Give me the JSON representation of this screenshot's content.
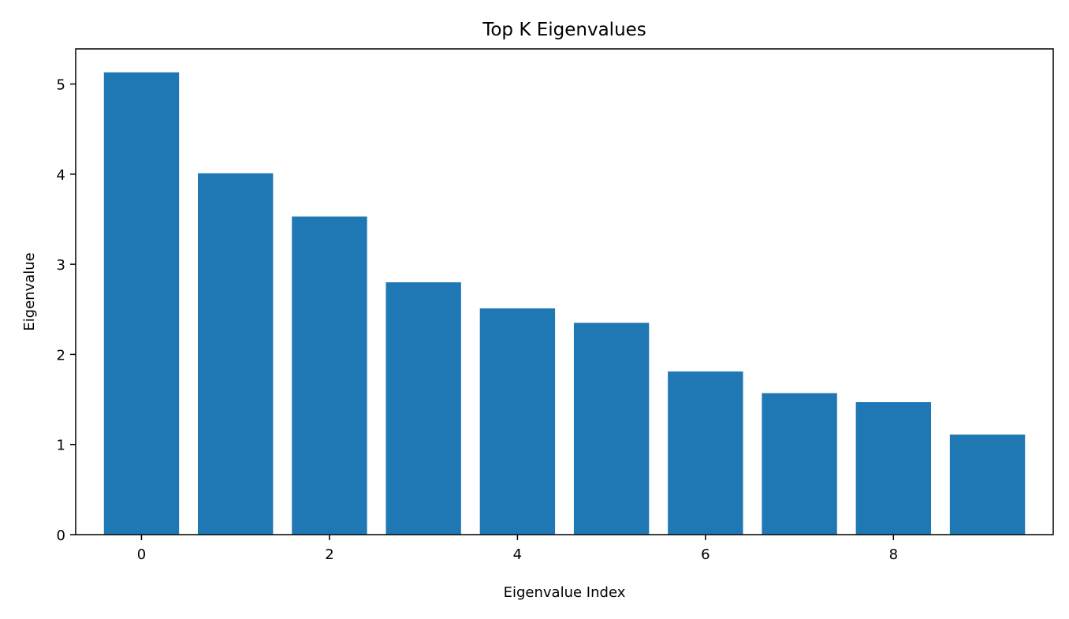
{
  "chart_data": {
    "type": "bar",
    "title": "Top K Eigenvalues",
    "xlabel": "Eigenvalue Index",
    "ylabel": "Eigenvalue",
    "x": [
      0,
      1,
      2,
      3,
      4,
      5,
      6,
      7,
      8,
      9
    ],
    "values": [
      5.13,
      4.01,
      3.53,
      2.8,
      2.51,
      2.35,
      1.81,
      1.57,
      1.47,
      1.11
    ],
    "xlim": [
      -0.7,
      9.7
    ],
    "ylim": [
      0,
      5.39
    ],
    "xticks": [
      0,
      2,
      4,
      6,
      8
    ],
    "yticks": [
      0,
      1,
      2,
      3,
      4,
      5
    ],
    "bar_color": "#1f77b4",
    "grid": false,
    "legend": "none"
  }
}
